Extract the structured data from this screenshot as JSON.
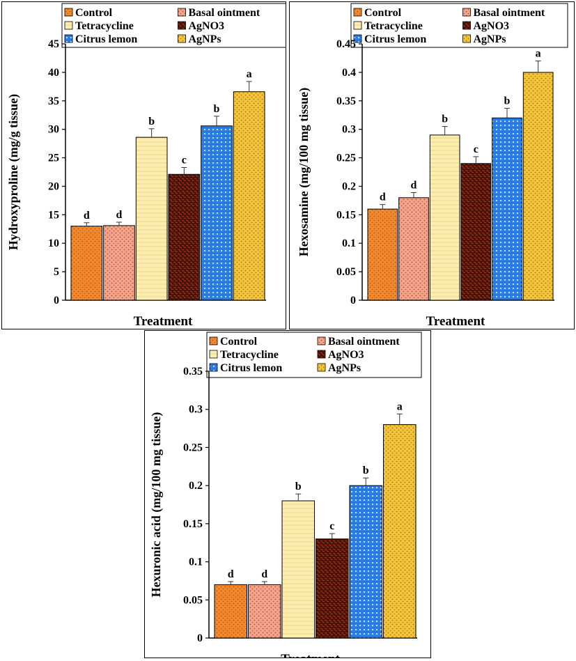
{
  "legend": {
    "entries": [
      "Control",
      "Basal ointment",
      "Tetracycline",
      "AgNO3",
      "Citrus lemon",
      "AgNPs"
    ],
    "colors": [
      "#f08a2c",
      "#ef9a7a",
      "#fbe9a0",
      "#5a1a08",
      "#2a78dc",
      "#f2c43a"
    ]
  },
  "chart_data": [
    {
      "type": "bar",
      "title": "",
      "xlabel": "Treatment",
      "ylabel": "Hydroxyproline (mg/g tissue)",
      "categories": [
        "Control",
        "Basal ointment",
        "Tetracycline",
        "AgNO3",
        "Citrus lemon",
        "AgNPs"
      ],
      "values": [
        13.0,
        13.1,
        28.6,
        22.1,
        30.6,
        36.6
      ],
      "errors": [
        0.6,
        0.6,
        1.5,
        1.2,
        1.7,
        1.8
      ],
      "significance": [
        "d",
        "d",
        "b",
        "c",
        "b",
        "a"
      ],
      "ylim": [
        0,
        45
      ],
      "yticks": [
        0,
        5,
        10,
        15,
        20,
        25,
        30,
        35,
        40,
        45
      ],
      "ytick_labels": [
        "0",
        "5",
        "10",
        "15",
        "20",
        "25",
        "30",
        "35",
        "40",
        "45"
      ],
      "legend_position": "top"
    },
    {
      "type": "bar",
      "title": "",
      "xlabel": "Treatment",
      "ylabel": "Hexosamine (mg/100 mg tissue)",
      "categories": [
        "Control",
        "Basal ointment",
        "Tetracycline",
        "AgNO3",
        "Citrus lemon",
        "AgNPs"
      ],
      "values": [
        0.16,
        0.18,
        0.29,
        0.24,
        0.32,
        0.4
      ],
      "errors": [
        0.008,
        0.009,
        0.015,
        0.012,
        0.017,
        0.02
      ],
      "significance": [
        "d",
        "d",
        "b",
        "c",
        "b",
        "a"
      ],
      "ylim": [
        0,
        0.45
      ],
      "yticks": [
        0,
        0.05,
        0.1,
        0.15,
        0.2,
        0.25,
        0.3,
        0.35,
        0.4,
        0.45
      ],
      "ytick_labels": [
        "0",
        "0.05",
        "0.1",
        "0.15",
        "0.2",
        "0.25",
        "0.3",
        "0.35",
        "0.4",
        "0.45"
      ],
      "legend_position": "top"
    },
    {
      "type": "bar",
      "title": "",
      "xlabel": "Treatment",
      "ylabel": "Hexuronic acid (mg/100 mg tissue)",
      "categories": [
        "Control",
        "Basal ointment",
        "Tetracycline",
        "AgNO3",
        "Citrus lemon",
        "AgNPs"
      ],
      "values": [
        0.07,
        0.07,
        0.18,
        0.13,
        0.2,
        0.28
      ],
      "errors": [
        0.004,
        0.004,
        0.009,
        0.007,
        0.01,
        0.014
      ],
      "significance": [
        "d",
        "d",
        "b",
        "c",
        "b",
        "a"
      ],
      "ylim": [
        0,
        0.35
      ],
      "yticks": [
        0,
        0.05,
        0.1,
        0.15,
        0.2,
        0.25,
        0.3,
        0.35
      ],
      "ytick_labels": [
        "0",
        "0.05",
        "0.1",
        "0.15",
        "0.2",
        "0.25",
        "0.3",
        "0.35"
      ],
      "legend_position": "top"
    }
  ]
}
